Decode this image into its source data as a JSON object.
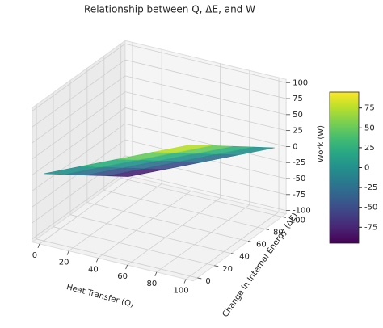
{
  "chart_data": {
    "type": "surface3d",
    "title": "Relationship between Q, ΔE, and W",
    "xlabel": "Heat Transfer (Q)",
    "ylabel": "Change in Internal Energy (ΔE)",
    "zlabel": "Work (W)",
    "x": [
      0,
      25,
      50,
      75,
      100
    ],
    "y": [
      0,
      25,
      50,
      75,
      100
    ],
    "z": [
      [
        0,
        25,
        50,
        75,
        100
      ],
      [
        -25,
        0,
        25,
        50,
        75
      ],
      [
        -50,
        -25,
        0,
        25,
        50
      ],
      [
        -75,
        -50,
        -25,
        0,
        25
      ],
      [
        -100,
        -75,
        -50,
        -25,
        0
      ]
    ],
    "xlim": [
      -5,
      105
    ],
    "ylim": [
      -5,
      105
    ],
    "zlim": [
      -105,
      105
    ],
    "xticks": [
      0,
      20,
      40,
      60,
      80,
      100
    ],
    "yticks": [
      0,
      20,
      40,
      60,
      80,
      100
    ],
    "zticks": [
      -100,
      -75,
      -50,
      -25,
      0,
      25,
      50,
      75,
      100
    ],
    "colormap": "viridis",
    "colorbar_lim": [
      -95,
      95
    ],
    "colorbar_ticks": [
      -75,
      -50,
      -25,
      0,
      25,
      50,
      75
    ],
    "grid": true
  }
}
